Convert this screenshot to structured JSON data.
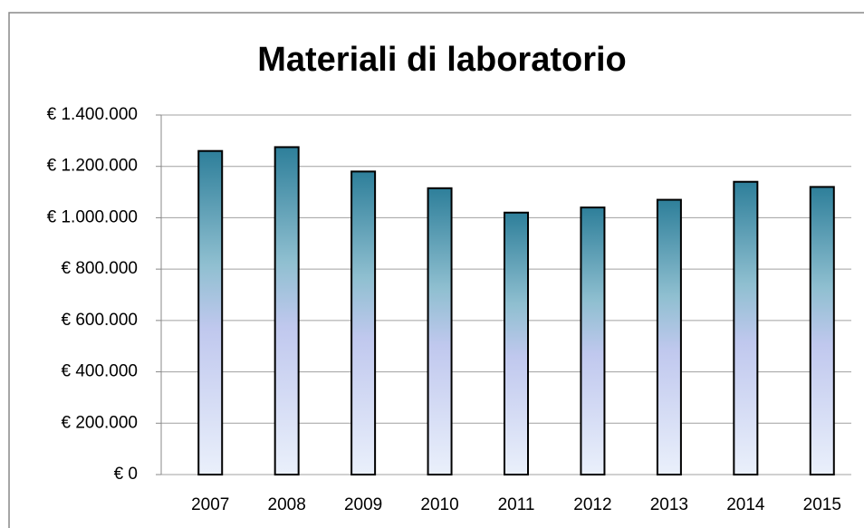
{
  "chart_data": {
    "type": "bar",
    "title": "Materiali di laboratorio",
    "categories": [
      "2007",
      "2008",
      "2009",
      "2010",
      "2011",
      "2012",
      "2013",
      "2014",
      "2015"
    ],
    "values": [
      1260000,
      1275000,
      1180000,
      1115000,
      1020000,
      1040000,
      1070000,
      1140000,
      1120000
    ],
    "color": "#2e7f9a",
    "ylim": [
      0,
      1400000
    ],
    "yticks": [
      {
        "value": 0,
        "label": "€ 0"
      },
      {
        "value": 200000,
        "label": "€ 200.000"
      },
      {
        "value": 400000,
        "label": "€ 400.000"
      },
      {
        "value": 600000,
        "label": "€ 600.000"
      },
      {
        "value": 800000,
        "label": "€ 800.000"
      },
      {
        "value": 1000000,
        "label": "€ 1.000.000"
      },
      {
        "value": 1200000,
        "label": "€ 1.200.000"
      },
      {
        "value": 1400000,
        "label": "€ 1.400.000"
      }
    ],
    "grid": true
  }
}
